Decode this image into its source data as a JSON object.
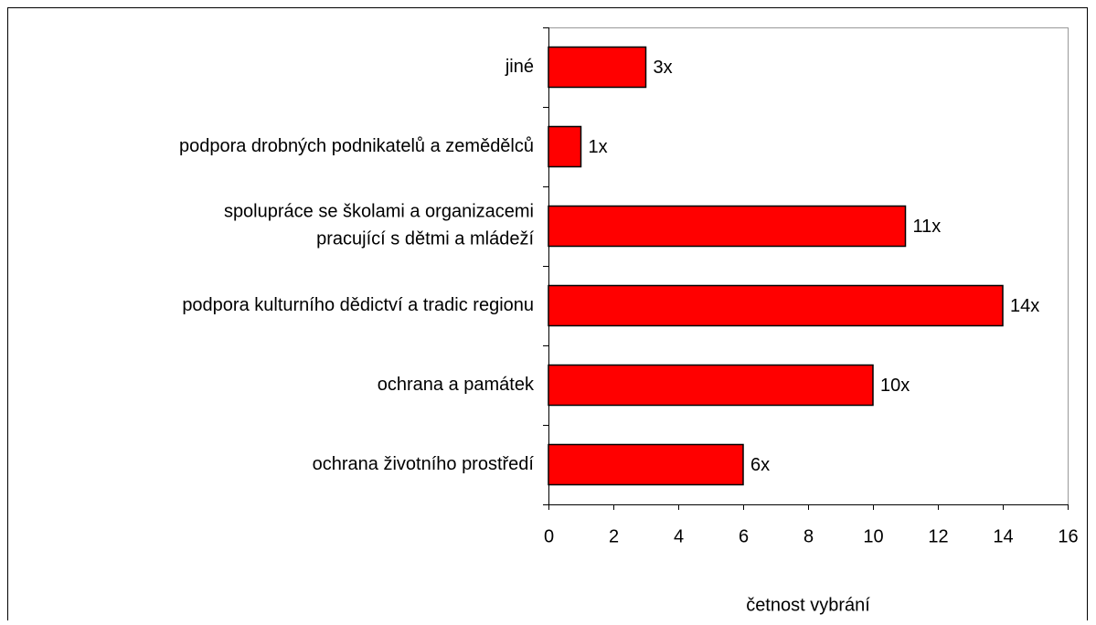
{
  "chart_data": {
    "type": "hbar",
    "categories": [
      "jiné",
      "podpora drobných podnikatelů a zemědělců",
      "spolupráce se školami a organizacemi\npracující s dětmi a mládeží",
      "podpora kulturního dědictví a tradic regionu",
      "ochrana a památek",
      "ochrana životního prostředí"
    ],
    "values": [
      3,
      1,
      11,
      14,
      10,
      6
    ],
    "value_labels": [
      "3x",
      "1x",
      "11x",
      "14x",
      "10x",
      "6x"
    ],
    "color": "#ff0000",
    "xlabel": "četnost vybrání",
    "xlim": [
      0,
      16
    ],
    "xticks": [
      0,
      2,
      4,
      6,
      8,
      10,
      12,
      14,
      16
    ],
    "grid": false
  }
}
